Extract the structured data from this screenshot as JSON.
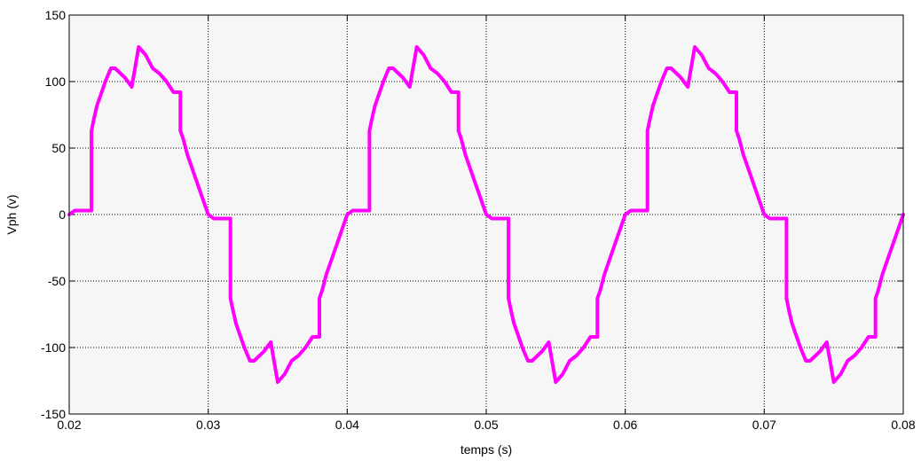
{
  "chart_data": {
    "type": "line",
    "title": "",
    "xlabel": "temps (s)",
    "ylabel": "Vph (v)",
    "xlim": [
      0.02,
      0.08
    ],
    "ylim": [
      -150,
      150
    ],
    "xticks": [
      0.02,
      0.03,
      0.04,
      0.05,
      0.06,
      0.07,
      0.08
    ],
    "xtick_labels": [
      "0.02",
      "0.03",
      "0.04",
      "0.05",
      "0.06",
      "0.07",
      "0.08"
    ],
    "yticks": [
      150,
      100,
      50,
      0,
      -50,
      -100,
      -150
    ],
    "ytick_labels": [
      "150",
      "100",
      "50",
      "0",
      "-50",
      "-100",
      "-150"
    ],
    "grid": true,
    "background": "#f6f6f6",
    "line_color": "#ff00ff",
    "series": [
      {
        "x": [
          0.02,
          0.0204,
          0.0216,
          0.0216,
          0.0218,
          0.022,
          0.0222,
          0.0226,
          0.023,
          0.0233,
          0.0236,
          0.024,
          0.0245,
          0.025,
          0.025,
          0.0255,
          0.026,
          0.0265,
          0.027,
          0.0275,
          0.028,
          0.028,
          0.0282,
          0.0285,
          0.029,
          0.0295,
          0.03,
          0.0304,
          0.0316,
          0.0316,
          0.0318,
          0.032,
          0.0322,
          0.0326,
          0.033,
          0.0333,
          0.0336,
          0.034,
          0.0345,
          0.035,
          0.035,
          0.0355,
          0.036,
          0.0365,
          0.037,
          0.0375,
          0.038,
          0.038,
          0.0382,
          0.0385,
          0.039,
          0.0395,
          0.04,
          0.0404,
          0.0416,
          0.0416,
          0.0418,
          0.042,
          0.0422,
          0.0426,
          0.043,
          0.0433,
          0.0436,
          0.044,
          0.0445,
          0.045,
          0.045,
          0.0455,
          0.046,
          0.0465,
          0.047,
          0.0475,
          0.048,
          0.048,
          0.0482,
          0.0485,
          0.049,
          0.0495,
          0.05,
          0.0504,
          0.0516,
          0.0516,
          0.0518,
          0.052,
          0.0522,
          0.0526,
          0.053,
          0.0533,
          0.0536,
          0.054,
          0.0545,
          0.055,
          0.055,
          0.0555,
          0.056,
          0.0565,
          0.057,
          0.0575,
          0.058,
          0.058,
          0.0582,
          0.0585,
          0.059,
          0.0595,
          0.06,
          0.0604,
          0.0616,
          0.0616,
          0.0618,
          0.062,
          0.0622,
          0.0626,
          0.063,
          0.0633,
          0.0636,
          0.064,
          0.0645,
          0.065,
          0.065,
          0.0655,
          0.066,
          0.0665,
          0.067,
          0.0675,
          0.068,
          0.068,
          0.0682,
          0.0685,
          0.069,
          0.0695,
          0.07,
          0.0704,
          0.0716,
          0.0716,
          0.0718,
          0.072,
          0.0722,
          0.0726,
          0.073,
          0.0733,
          0.0736,
          0.074,
          0.0745,
          0.075,
          0.075,
          0.0755,
          0.076,
          0.0765,
          0.077,
          0.0775,
          0.078,
          0.078,
          0.0782,
          0.0785,
          0.079,
          0.0795,
          0.08
        ],
        "values": [
          0,
          3,
          3,
          63,
          73,
          82,
          88,
          100,
          110,
          110,
          107,
          103,
          96,
          126,
          126,
          120,
          110,
          106,
          100,
          92,
          92,
          63,
          57,
          45,
          30,
          15,
          0,
          -3,
          -3,
          -63,
          -73,
          -82,
          -88,
          -100,
          -110,
          -110,
          -107,
          -103,
          -96,
          -126,
          -126,
          -120,
          -110,
          -106,
          -100,
          -92,
          -92,
          -63,
          -57,
          -45,
          -30,
          -15,
          0,
          3,
          3,
          63,
          73,
          82,
          88,
          100,
          110,
          110,
          107,
          103,
          96,
          126,
          126,
          120,
          110,
          106,
          100,
          92,
          92,
          63,
          57,
          45,
          30,
          15,
          0,
          -3,
          -3,
          -63,
          -73,
          -82,
          -88,
          -100,
          -110,
          -110,
          -107,
          -103,
          -96,
          -126,
          -126,
          -120,
          -110,
          -106,
          -100,
          -92,
          -92,
          -63,
          -57,
          -45,
          -30,
          -15,
          0,
          3,
          3,
          63,
          73,
          82,
          88,
          100,
          110,
          110,
          107,
          103,
          96,
          126,
          126,
          120,
          110,
          106,
          100,
          92,
          92,
          63,
          57,
          45,
          30,
          15,
          0,
          -3,
          -3,
          -63,
          -73,
          -82,
          -88,
          -100,
          -110,
          -110,
          -107,
          -103,
          -96,
          -126,
          -126,
          -120,
          -110,
          -106,
          -100,
          -92,
          -92,
          -63,
          -57,
          -45,
          -30,
          -15,
          0
        ]
      }
    ]
  }
}
